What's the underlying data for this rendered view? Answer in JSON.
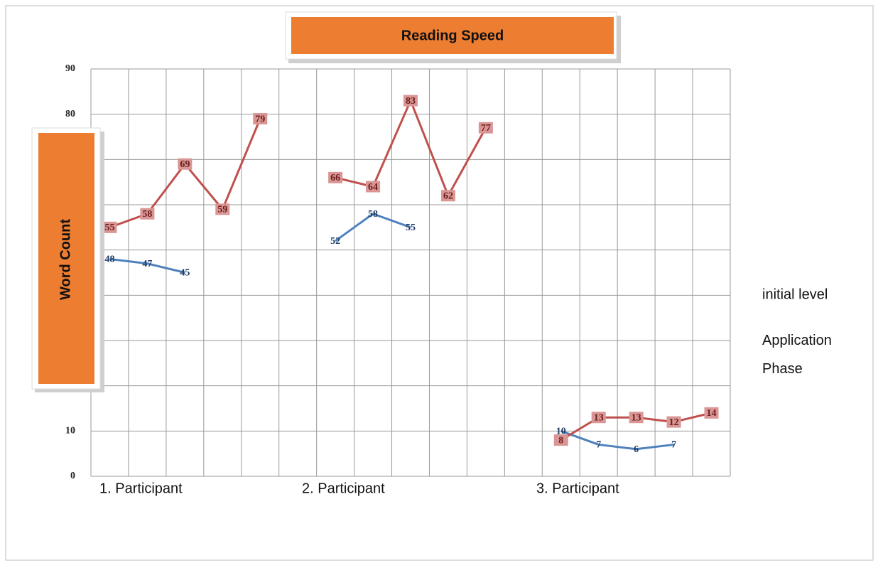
{
  "chart_data": {
    "type": "line",
    "title": "Reading Speed",
    "y_label": "Word Count",
    "categories": [
      null,
      null,
      null,
      null,
      null,
      null,
      null,
      null,
      null,
      null,
      null,
      null,
      null,
      null,
      null,
      null,
      null
    ],
    "x_group_labels": [
      "1. Participant",
      "2. Participant",
      "3. Participant"
    ],
    "series": [
      {
        "name": "initial level",
        "color": "#4f81bd",
        "values": [
          48,
          47,
          45,
          null,
          null,
          null,
          52,
          58,
          55,
          null,
          null,
          null,
          10,
          7,
          6,
          7,
          null
        ]
      },
      {
        "name": "Application Phase",
        "color": "#c0504d",
        "values": [
          55,
          58,
          69,
          59,
          79,
          null,
          66,
          64,
          83,
          62,
          77,
          null,
          8,
          13,
          13,
          12,
          14
        ]
      }
    ],
    "ylim": [
      0,
      90
    ],
    "yticks": [
      0,
      10,
      20,
      30,
      40,
      50,
      60,
      70,
      80,
      90
    ],
    "grid": true
  }
}
